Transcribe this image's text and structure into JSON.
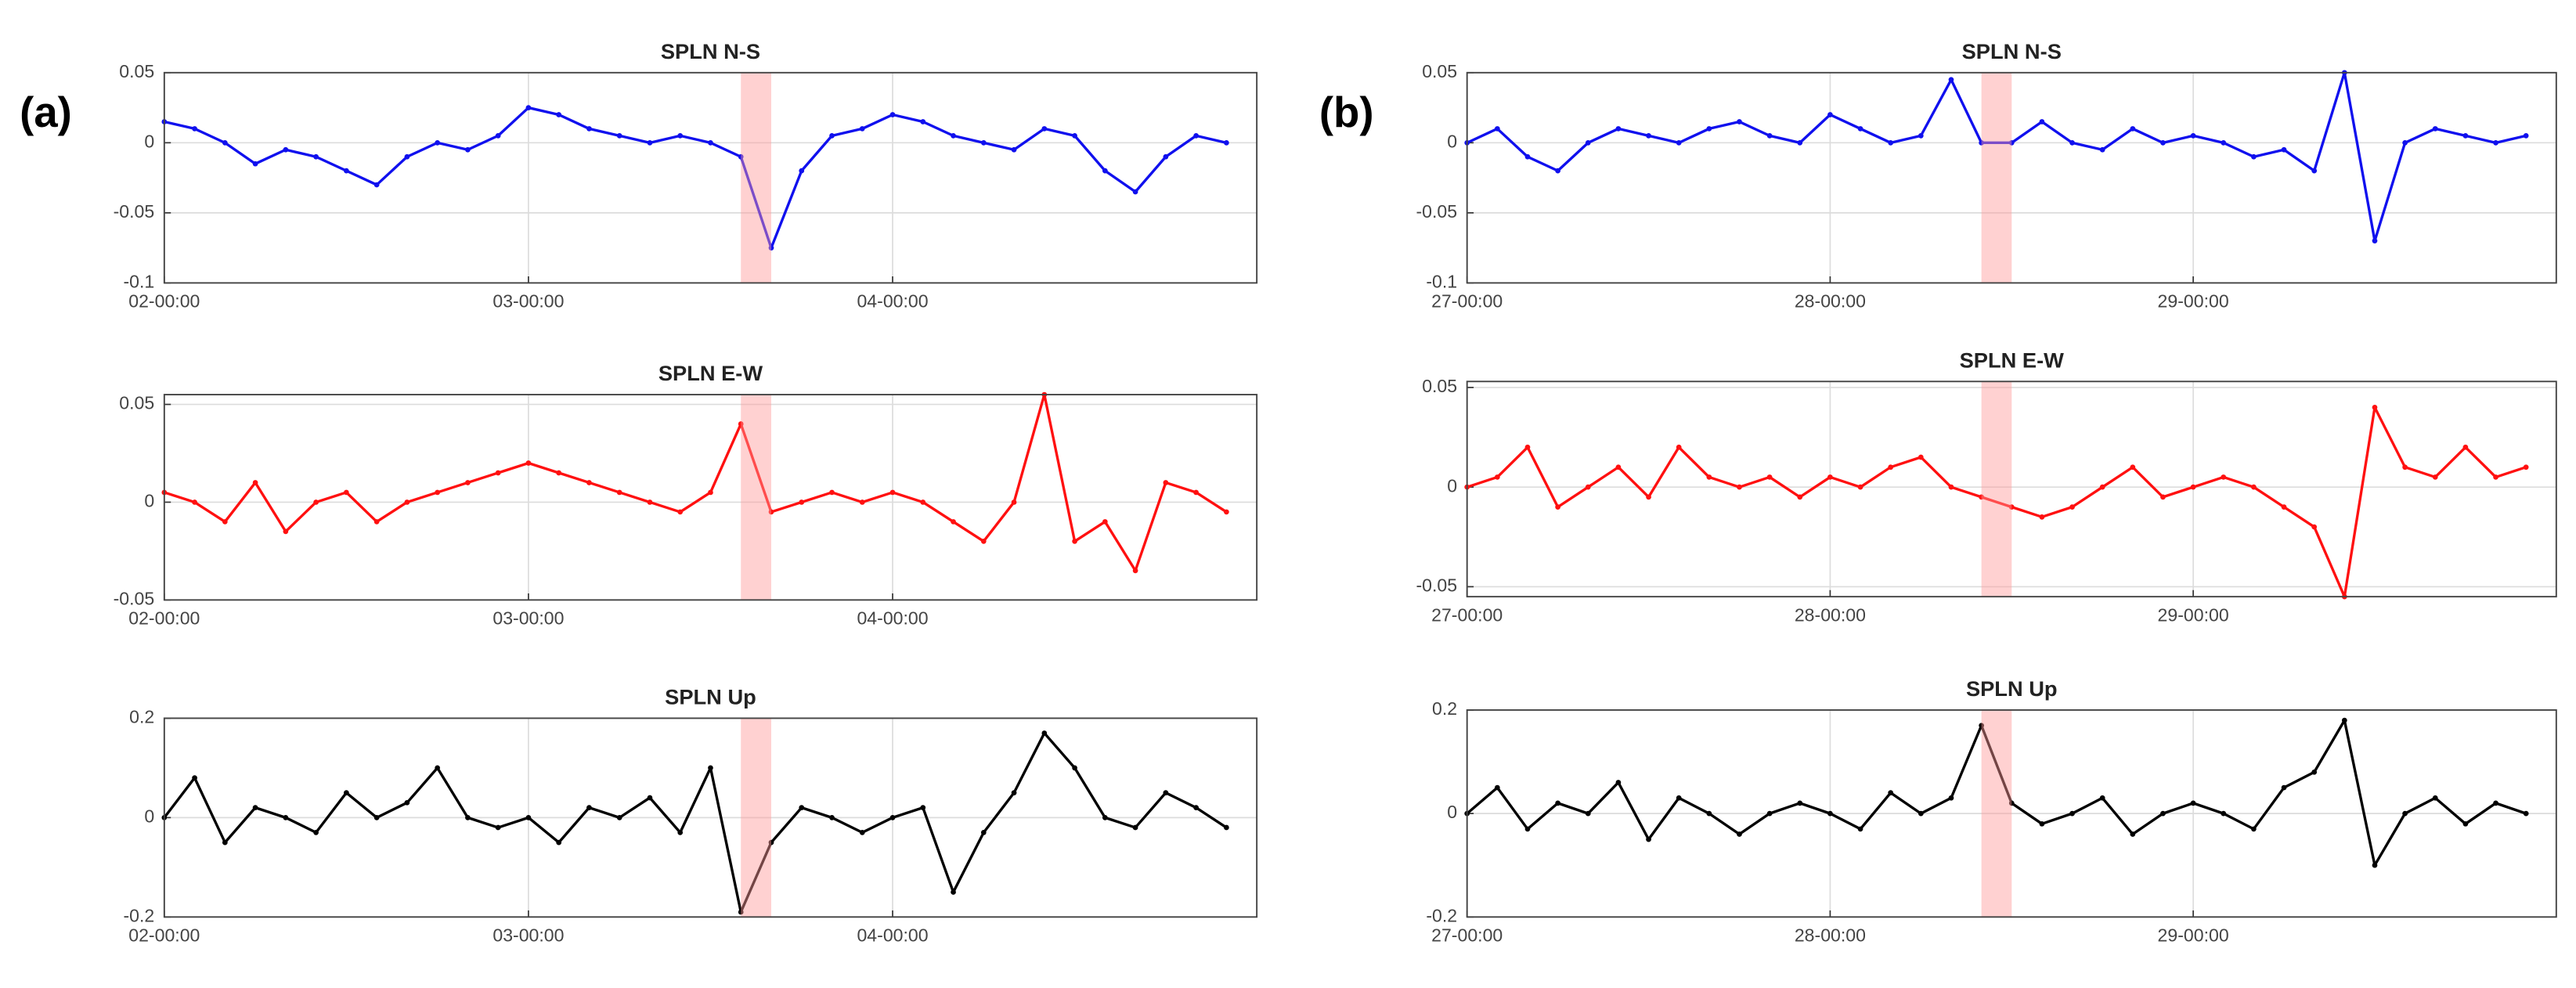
{
  "panel_labels": [
    "(a)",
    "(b)"
  ],
  "chart_data": [
    {
      "type": "line",
      "title": "SPLN N-S",
      "color": "#1010ee",
      "grid": true,
      "highlight": [
        "03-14:00",
        "03-16:00"
      ],
      "highlight_color": "#ff9a9a",
      "xlim": [
        "02-00:00",
        "05-00:00"
      ],
      "xticks": [
        "02-00:00",
        "03-00:00",
        "04-00:00"
      ],
      "ylim": [
        -0.1,
        0.05
      ],
      "yticks": [
        -0.1,
        -0.05,
        0,
        0.05
      ],
      "x": [
        "02-00:00",
        "02-02:00",
        "02-04:00",
        "02-06:00",
        "02-08:00",
        "02-10:00",
        "02-12:00",
        "02-14:00",
        "02-16:00",
        "02-18:00",
        "02-20:00",
        "02-22:00",
        "03-00:00",
        "03-02:00",
        "03-04:00",
        "03-06:00",
        "03-08:00",
        "03-10:00",
        "03-12:00",
        "03-14:00",
        "03-16:00",
        "03-18:00",
        "03-20:00",
        "03-22:00",
        "04-00:00",
        "04-02:00",
        "04-04:00",
        "04-06:00",
        "04-08:00",
        "04-10:00",
        "04-12:00",
        "04-14:00",
        "04-16:00",
        "04-18:00",
        "04-20:00",
        "04-22:00"
      ],
      "values": [
        0.015,
        0.01,
        0.0,
        -0.015,
        -0.005,
        -0.01,
        -0.02,
        -0.03,
        -0.01,
        0.0,
        -0.005,
        0.005,
        0.025,
        0.02,
        0.01,
        0.005,
        0.0,
        0.005,
        0.0,
        -0.01,
        -0.075,
        -0.02,
        0.005,
        0.01,
        0.02,
        0.015,
        0.005,
        0.0,
        -0.005,
        0.01,
        0.005,
        -0.02,
        -0.035,
        -0.01,
        0.005,
        0.0
      ]
    },
    {
      "type": "line",
      "title": "SPLN E-W",
      "color": "#ff1010",
      "grid": true,
      "highlight": [
        "03-14:00",
        "03-16:00"
      ],
      "highlight_color": "#ff9a9a",
      "xlim": [
        "02-00:00",
        "05-00:00"
      ],
      "xticks": [
        "02-00:00",
        "03-00:00",
        "04-00:00"
      ],
      "ylim": [
        -0.05,
        0.055
      ],
      "yticks": [
        -0.05,
        0,
        0.05
      ],
      "x": [
        "02-00:00",
        "02-02:00",
        "02-04:00",
        "02-06:00",
        "02-08:00",
        "02-10:00",
        "02-12:00",
        "02-14:00",
        "02-16:00",
        "02-18:00",
        "02-20:00",
        "02-22:00",
        "03-00:00",
        "03-02:00",
        "03-04:00",
        "03-06:00",
        "03-08:00",
        "03-10:00",
        "03-12:00",
        "03-14:00",
        "03-16:00",
        "03-18:00",
        "03-20:00",
        "03-22:00",
        "04-00:00",
        "04-02:00",
        "04-04:00",
        "04-06:00",
        "04-08:00",
        "04-10:00",
        "04-12:00",
        "04-14:00",
        "04-16:00",
        "04-18:00",
        "04-20:00",
        "04-22:00"
      ],
      "values": [
        0.005,
        0.0,
        -0.01,
        0.01,
        -0.015,
        0.0,
        0.005,
        -0.01,
        0.0,
        0.005,
        0.01,
        0.015,
        0.02,
        0.015,
        0.01,
        0.005,
        0.0,
        -0.005,
        0.005,
        0.04,
        -0.005,
        0.0,
        0.005,
        0.0,
        0.005,
        0.0,
        -0.01,
        -0.02,
        0.0,
        0.055,
        -0.02,
        -0.01,
        -0.035,
        0.01,
        0.005,
        -0.005
      ]
    },
    {
      "type": "line",
      "title": "SPLN Up",
      "color": "#000000",
      "grid": true,
      "highlight": [
        "03-14:00",
        "03-16:00"
      ],
      "highlight_color": "#ff9a9a",
      "xlim": [
        "02-00:00",
        "05-00:00"
      ],
      "xticks": [
        "02-00:00",
        "03-00:00",
        "04-00:00"
      ],
      "ylim": [
        -0.2,
        0.2
      ],
      "yticks": [
        -0.2,
        0,
        0.2
      ],
      "x": [
        "02-00:00",
        "02-02:00",
        "02-04:00",
        "02-06:00",
        "02-08:00",
        "02-10:00",
        "02-12:00",
        "02-14:00",
        "02-16:00",
        "02-18:00",
        "02-20:00",
        "02-22:00",
        "03-00:00",
        "03-02:00",
        "03-04:00",
        "03-06:00",
        "03-08:00",
        "03-10:00",
        "03-12:00",
        "03-14:00",
        "03-16:00",
        "03-18:00",
        "03-20:00",
        "03-22:00",
        "04-00:00",
        "04-02:00",
        "04-04:00",
        "04-06:00",
        "04-08:00",
        "04-10:00",
        "04-12:00",
        "04-14:00",
        "04-16:00",
        "04-18:00",
        "04-20:00",
        "04-22:00"
      ],
      "values": [
        0.0,
        0.08,
        -0.05,
        0.02,
        0.0,
        -0.03,
        0.05,
        0.0,
        0.03,
        0.1,
        0.0,
        -0.02,
        0.0,
        -0.05,
        0.02,
        0.0,
        0.04,
        -0.03,
        0.1,
        -0.19,
        -0.05,
        0.02,
        0.0,
        -0.03,
        0.0,
        0.02,
        -0.15,
        -0.03,
        0.05,
        0.17,
        0.1,
        0.0,
        -0.02,
        0.05,
        0.02,
        -0.02
      ]
    },
    {
      "type": "line",
      "title": "SPLN N-S",
      "color": "#1010ee",
      "grid": true,
      "highlight": [
        "28-10:00",
        "28-12:00"
      ],
      "highlight_color": "#ff9a9a",
      "xlim": [
        "27-00:00",
        "30-00:00"
      ],
      "xticks": [
        "27-00:00",
        "28-00:00",
        "29-00:00"
      ],
      "ylim": [
        -0.1,
        0.05
      ],
      "yticks": [
        -0.1,
        -0.05,
        0,
        0.05
      ],
      "x": [
        "27-00:00",
        "27-02:00",
        "27-04:00",
        "27-06:00",
        "27-08:00",
        "27-10:00",
        "27-12:00",
        "27-14:00",
        "27-16:00",
        "27-18:00",
        "27-20:00",
        "27-22:00",
        "28-00:00",
        "28-02:00",
        "28-04:00",
        "28-06:00",
        "28-08:00",
        "28-10:00",
        "28-12:00",
        "28-14:00",
        "28-16:00",
        "28-18:00",
        "28-20:00",
        "28-22:00",
        "29-00:00",
        "29-02:00",
        "29-04:00",
        "29-06:00",
        "29-08:00",
        "29-10:00",
        "29-12:00",
        "29-14:00",
        "29-16:00",
        "29-18:00",
        "29-20:00",
        "29-22:00"
      ],
      "values": [
        0.0,
        0.01,
        -0.01,
        -0.02,
        0.0,
        0.01,
        0.005,
        0.0,
        0.01,
        0.015,
        0.005,
        0.0,
        0.02,
        0.01,
        0.0,
        0.005,
        0.045,
        0.0,
        0.0,
        0.015,
        0.0,
        -0.005,
        0.01,
        0.0,
        0.005,
        0.0,
        -0.01,
        -0.005,
        -0.02,
        0.05,
        -0.07,
        0.0,
        0.01,
        0.005,
        0.0,
        0.005
      ]
    },
    {
      "type": "line",
      "title": "SPLN E-W",
      "color": "#ff1010",
      "grid": true,
      "highlight": [
        "28-10:00",
        "28-12:00"
      ],
      "highlight_color": "#ff9a9a",
      "xlim": [
        "27-00:00",
        "30-00:00"
      ],
      "xticks": [
        "27-00:00",
        "28-00:00",
        "29-00:00"
      ],
      "ylim": [
        -0.055,
        0.053
      ],
      "yticks": [
        -0.05,
        0,
        0.05
      ],
      "x": [
        "27-00:00",
        "27-02:00",
        "27-04:00",
        "27-06:00",
        "27-08:00",
        "27-10:00",
        "27-12:00",
        "27-14:00",
        "27-16:00",
        "27-18:00",
        "27-20:00",
        "27-22:00",
        "28-00:00",
        "28-02:00",
        "28-04:00",
        "28-06:00",
        "28-08:00",
        "28-10:00",
        "28-12:00",
        "28-14:00",
        "28-16:00",
        "28-18:00",
        "28-20:00",
        "28-22:00",
        "29-00:00",
        "29-02:00",
        "29-04:00",
        "29-06:00",
        "29-08:00",
        "29-10:00",
        "29-12:00",
        "29-14:00",
        "29-16:00",
        "29-18:00",
        "29-20:00",
        "29-22:00"
      ],
      "values": [
        0.0,
        0.005,
        0.02,
        -0.01,
        0.0,
        0.01,
        -0.005,
        0.02,
        0.005,
        0.0,
        0.005,
        -0.005,
        0.005,
        0.0,
        0.01,
        0.015,
        0.0,
        -0.005,
        -0.01,
        -0.015,
        -0.01,
        0.0,
        0.01,
        -0.005,
        0.0,
        0.005,
        0.0,
        -0.01,
        -0.02,
        -0.055,
        0.04,
        0.01,
        0.005,
        0.02,
        0.005,
        0.01
      ]
    },
    {
      "type": "line",
      "title": "SPLN Up",
      "color": "#000000",
      "grid": true,
      "highlight": [
        "28-10:00",
        "28-12:00"
      ],
      "highlight_color": "#ff9a9a",
      "xlim": [
        "27-00:00",
        "30-00:00"
      ],
      "xticks": [
        "27-00:00",
        "28-00:00",
        "29-00:00"
      ],
      "ylim": [
        -0.2,
        0.2
      ],
      "yticks": [
        -0.2,
        0,
        0.2
      ],
      "x": [
        "27-00:00",
        "27-02:00",
        "27-04:00",
        "27-06:00",
        "27-08:00",
        "27-10:00",
        "27-12:00",
        "27-14:00",
        "27-16:00",
        "27-18:00",
        "27-20:00",
        "27-22:00",
        "28-00:00",
        "28-02:00",
        "28-04:00",
        "28-06:00",
        "28-08:00",
        "28-10:00",
        "28-12:00",
        "28-14:00",
        "28-16:00",
        "28-18:00",
        "28-20:00",
        "28-22:00",
        "29-00:00",
        "29-02:00",
        "29-04:00",
        "29-06:00",
        "29-08:00",
        "29-10:00",
        "29-12:00",
        "29-14:00",
        "29-16:00",
        "29-18:00",
        "29-20:00",
        "29-22:00"
      ],
      "values": [
        0.0,
        0.05,
        -0.03,
        0.02,
        0.0,
        0.06,
        -0.05,
        0.03,
        0.0,
        -0.04,
        0.0,
        0.02,
        0.0,
        -0.03,
        0.04,
        0.0,
        0.03,
        0.17,
        0.02,
        -0.02,
        0.0,
        0.03,
        -0.04,
        0.0,
        0.02,
        0.0,
        -0.03,
        0.05,
        0.08,
        0.18,
        -0.1,
        0.0,
        0.03,
        -0.02,
        0.02,
        0.0
      ]
    }
  ]
}
